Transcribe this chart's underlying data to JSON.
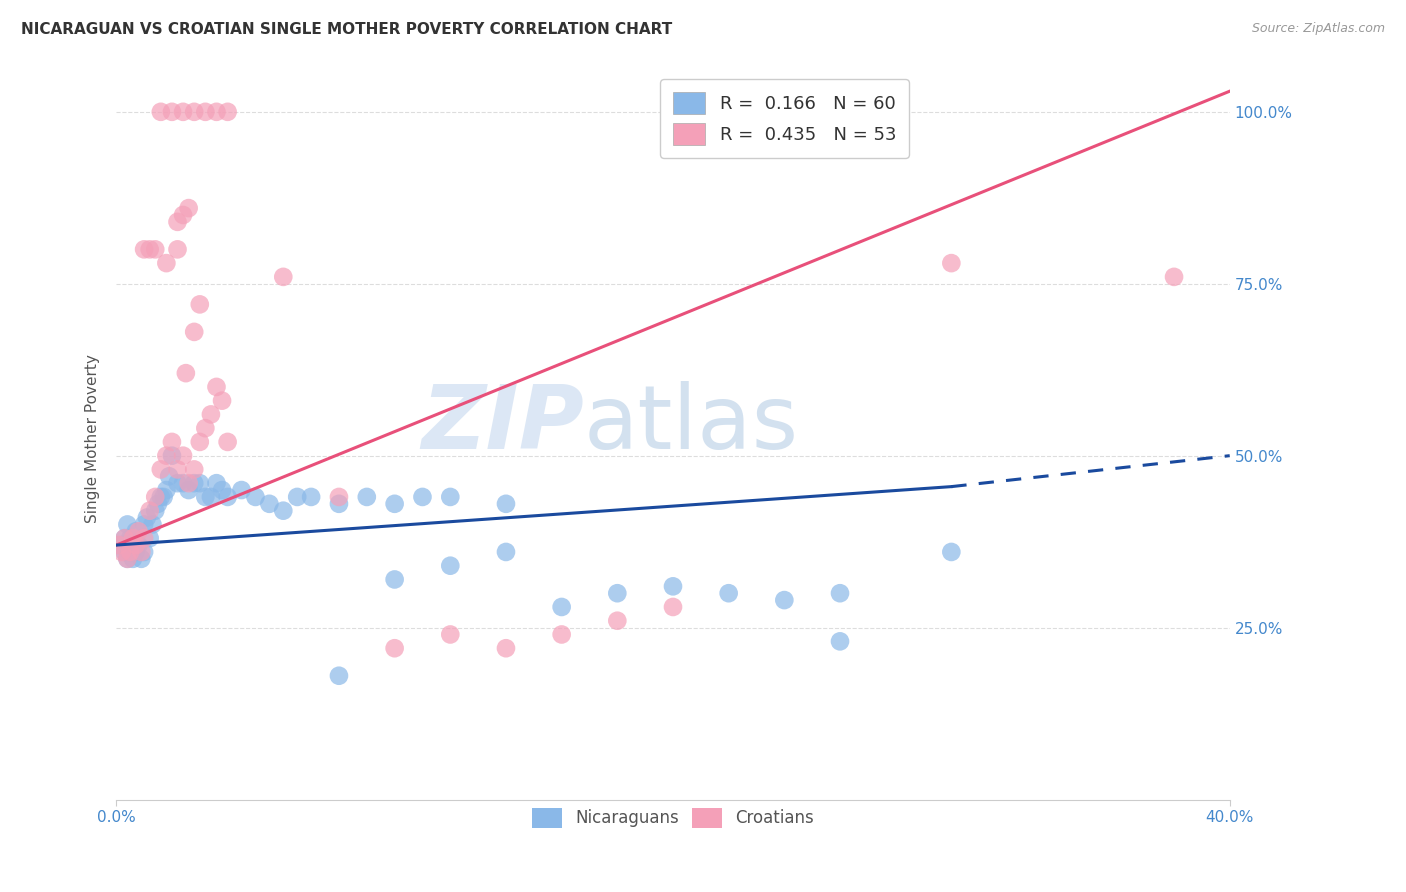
{
  "title": "NICARAGUAN VS CROATIAN SINGLE MOTHER POVERTY CORRELATION CHART",
  "source": "Source: ZipAtlas.com",
  "ylabel": "Single Mother Poverty",
  "ytick_labels": [
    "25.0%",
    "50.0%",
    "75.0%",
    "100.0%"
  ],
  "ytick_vals": [
    0.25,
    0.5,
    0.75,
    1.0
  ],
  "xlim": [
    0.0,
    0.4
  ],
  "ylim": [
    0.0,
    1.05
  ],
  "nic_color": "#8ab8e8",
  "cro_color": "#f4a0b8",
  "nic_line_color": "#1a4a9e",
  "cro_line_color": "#e8507a",
  "watermark_zip": "ZIP",
  "watermark_atlas": "atlas",
  "legend_entries": [
    "R =  0.166   N = 60",
    "R =  0.435   N = 53"
  ],
  "nic_scatter_x": [
    0.001,
    0.002,
    0.003,
    0.003,
    0.004,
    0.004,
    0.005,
    0.005,
    0.006,
    0.006,
    0.007,
    0.007,
    0.008,
    0.009,
    0.01,
    0.01,
    0.011,
    0.012,
    0.013,
    0.014,
    0.015,
    0.016,
    0.017,
    0.018,
    0.019,
    0.02,
    0.022,
    0.024,
    0.026,
    0.028,
    0.03,
    0.032,
    0.034,
    0.036,
    0.038,
    0.04,
    0.045,
    0.05,
    0.055,
    0.06,
    0.065,
    0.07,
    0.08,
    0.09,
    0.1,
    0.11,
    0.12,
    0.14,
    0.16,
    0.18,
    0.2,
    0.22,
    0.24,
    0.26,
    0.14,
    0.12,
    0.1,
    0.08,
    0.3,
    0.26
  ],
  "nic_scatter_y": [
    0.37,
    0.37,
    0.36,
    0.38,
    0.35,
    0.4,
    0.36,
    0.38,
    0.35,
    0.38,
    0.36,
    0.39,
    0.37,
    0.35,
    0.36,
    0.4,
    0.41,
    0.38,
    0.4,
    0.42,
    0.43,
    0.44,
    0.44,
    0.45,
    0.47,
    0.5,
    0.46,
    0.46,
    0.45,
    0.46,
    0.46,
    0.44,
    0.44,
    0.46,
    0.45,
    0.44,
    0.45,
    0.44,
    0.43,
    0.42,
    0.44,
    0.44,
    0.43,
    0.44,
    0.43,
    0.44,
    0.44,
    0.43,
    0.28,
    0.3,
    0.31,
    0.3,
    0.29,
    0.3,
    0.36,
    0.34,
    0.32,
    0.18,
    0.36,
    0.23
  ],
  "cro_scatter_x": [
    0.001,
    0.002,
    0.003,
    0.004,
    0.005,
    0.006,
    0.007,
    0.008,
    0.009,
    0.01,
    0.012,
    0.014,
    0.016,
    0.018,
    0.02,
    0.022,
    0.024,
    0.026,
    0.028,
    0.03,
    0.032,
    0.034,
    0.036,
    0.038,
    0.04,
    0.025,
    0.028,
    0.03,
    0.022,
    0.018,
    0.014,
    0.01,
    0.012,
    0.016,
    0.02,
    0.024,
    0.028,
    0.032,
    0.036,
    0.04,
    0.06,
    0.08,
    0.1,
    0.12,
    0.14,
    0.16,
    0.18,
    0.2,
    0.3,
    0.38,
    0.022,
    0.024,
    0.026
  ],
  "cro_scatter_y": [
    0.37,
    0.36,
    0.38,
    0.35,
    0.36,
    0.38,
    0.37,
    0.39,
    0.36,
    0.38,
    0.42,
    0.44,
    0.48,
    0.5,
    0.52,
    0.48,
    0.5,
    0.46,
    0.48,
    0.52,
    0.54,
    0.56,
    0.6,
    0.58,
    0.52,
    0.62,
    0.68,
    0.72,
    0.8,
    0.78,
    0.8,
    0.8,
    0.8,
    1.0,
    1.0,
    1.0,
    1.0,
    1.0,
    1.0,
    1.0,
    0.76,
    0.44,
    0.22,
    0.24,
    0.22,
    0.24,
    0.26,
    0.28,
    0.78,
    0.76,
    0.84,
    0.85,
    0.86
  ],
  "background_color": "#ffffff",
  "grid_color": "#dddddd",
  "nic_line_x0": 0.0,
  "nic_line_y0": 0.37,
  "nic_line_x1_solid": 0.3,
  "nic_line_y1_solid": 0.455,
  "nic_line_x1_dash": 0.4,
  "nic_line_y1_dash": 0.5,
  "cro_line_x0": 0.0,
  "cro_line_y0": 0.37,
  "cro_line_x1": 0.4,
  "cro_line_y1": 1.03
}
